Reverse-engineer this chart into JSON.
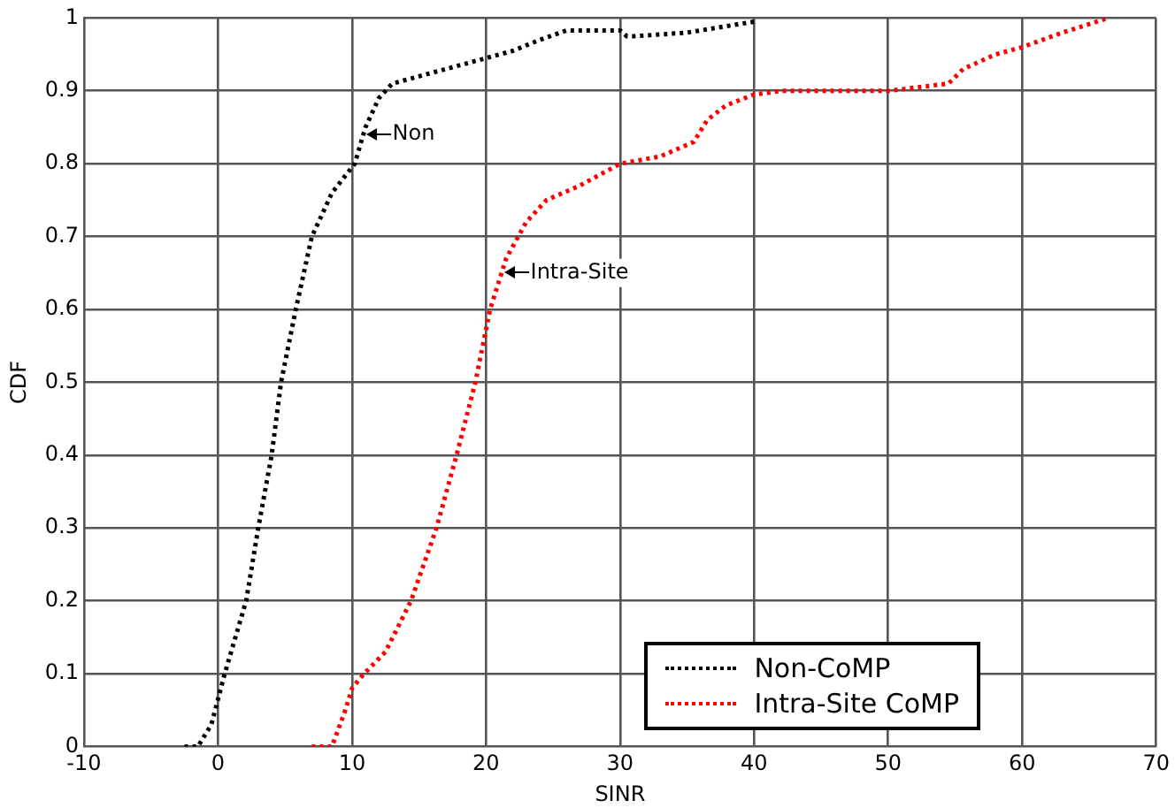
{
  "chart_data": {
    "type": "line",
    "xlabel": "SINR",
    "ylabel": "CDF",
    "xlim": [
      -10,
      70
    ],
    "xticks": [
      -10,
      0,
      10,
      20,
      30,
      40,
      50,
      60,
      70
    ],
    "ylim": [
      0,
      1
    ],
    "yticks": [
      0,
      0.1,
      0.2,
      0.3,
      0.4,
      0.5,
      0.6,
      0.7,
      0.8,
      0.9,
      1
    ],
    "grid": true,
    "legend": "bottom right",
    "line_style": "dotted",
    "marker": "none",
    "annotations": [
      {
        "text": "Non",
        "x": 10.9,
        "y": 0.84
      },
      {
        "text": "Intra-Site",
        "x": 21.2,
        "y": 0.65
      }
    ],
    "series": [
      {
        "name": "Non-CoMP",
        "color": "#000000",
        "x": [
          -2.5,
          -1.5,
          -0.5,
          0.5,
          2.1,
          3,
          4,
          4.7,
          5.8,
          7,
          8.5,
          10.2,
          11,
          12,
          13,
          15,
          17,
          20,
          22,
          24,
          26,
          28,
          30,
          30.5,
          31,
          35,
          40
        ],
        "values": [
          0,
          0,
          0.03,
          0.1,
          0.2,
          0.3,
          0.4,
          0.5,
          0.6,
          0.7,
          0.76,
          0.8,
          0.85,
          0.89,
          0.91,
          0.92,
          0.93,
          0.945,
          0.955,
          0.97,
          0.983,
          0.983,
          0.983,
          0.975,
          0.975,
          0.98,
          0.995
        ]
      },
      {
        "name": "Intra-Site CoMP",
        "color": "#ff0000",
        "x": [
          7,
          8.5,
          9.5,
          10,
          10.9,
          12.5,
          14.4,
          16.3,
          17.8,
          19.2,
          20.3,
          21.5,
          23,
          24.5,
          27,
          30,
          33,
          35.5,
          36.5,
          37.9,
          40,
          42,
          47,
          50,
          54.5,
          55.6,
          58,
          60,
          63,
          66.4
        ],
        "values": [
          0,
          0,
          0.05,
          0.08,
          0.1,
          0.13,
          0.2,
          0.3,
          0.4,
          0.5,
          0.6,
          0.67,
          0.72,
          0.75,
          0.77,
          0.8,
          0.81,
          0.83,
          0.86,
          0.88,
          0.895,
          0.9,
          0.9,
          0.9,
          0.91,
          0.93,
          0.95,
          0.96,
          0.98,
          1
        ]
      }
    ]
  }
}
